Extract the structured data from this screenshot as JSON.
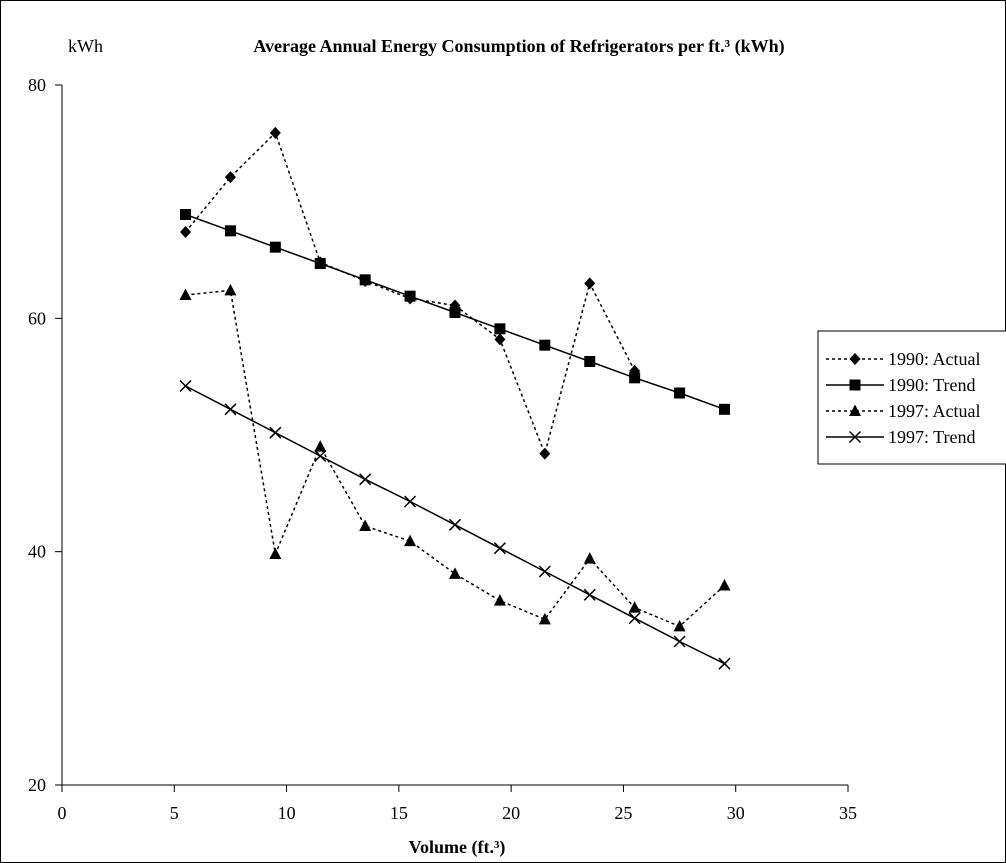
{
  "chart_data": {
    "type": "line",
    "title": "Average Annual Energy Consumption of Refrigerators per ft.³ (kWh)",
    "ylabel": "kWh",
    "xlabel": "Volume (ft.³)",
    "xlim": [
      0,
      35
    ],
    "ylim": [
      20,
      80
    ],
    "xticks": [
      "0",
      "5",
      "10",
      "15",
      "20",
      "25",
      "30",
      "35"
    ],
    "yticks": [
      "20",
      "40",
      "60",
      "80"
    ],
    "grid": false,
    "legend_position": "right",
    "x": [
      5.5,
      7.5,
      9.5,
      11.5,
      13.5,
      15.5,
      17.5,
      19.5,
      21.5,
      23.5,
      25.5,
      27.5,
      29.5
    ],
    "series": [
      {
        "name": "1990: Actual",
        "style": "dotted",
        "marker": "diamond",
        "x": [
          5.5,
          7.5,
          9.5,
          11.5,
          13.5,
          15.5,
          17.5,
          19.5,
          21.5,
          23.5,
          25.5
        ],
        "values": [
          67.4,
          72.1,
          75.9,
          64.8,
          63.2,
          61.7,
          61.1,
          58.2,
          48.4,
          63.0,
          55.5
        ]
      },
      {
        "name": "1990: Trend",
        "style": "solid",
        "marker": "square",
        "x": [
          5.5,
          7.5,
          9.5,
          11.5,
          13.5,
          15.5,
          17.5,
          19.5,
          21.5,
          23.5,
          25.5,
          27.5,
          29.5
        ],
        "values": [
          68.9,
          67.5,
          66.1,
          64.7,
          63.3,
          61.9,
          60.5,
          59.1,
          57.7,
          56.3,
          54.9,
          53.6,
          52.2
        ]
      },
      {
        "name": "1997: Actual",
        "style": "dotted",
        "marker": "triangle",
        "x": [
          5.5,
          7.5,
          9.5,
          11.5,
          13.5,
          15.5,
          17.5,
          19.5,
          21.5,
          23.5,
          25.5,
          27.5,
          29.5
        ],
        "values": [
          62.0,
          62.4,
          39.8,
          49.0,
          42.2,
          40.9,
          38.1,
          35.8,
          34.2,
          39.4,
          35.2,
          33.6,
          37.1
        ]
      },
      {
        "name": "1997: Trend",
        "style": "solid",
        "marker": "x",
        "x": [
          5.5,
          7.5,
          9.5,
          11.5,
          13.5,
          15.5,
          17.5,
          19.5,
          21.5,
          23.5,
          25.5,
          27.5,
          29.5
        ],
        "values": [
          54.2,
          52.2,
          50.2,
          48.2,
          46.2,
          44.3,
          42.3,
          40.3,
          38.3,
          36.3,
          34.3,
          32.3,
          30.4
        ]
      }
    ]
  }
}
